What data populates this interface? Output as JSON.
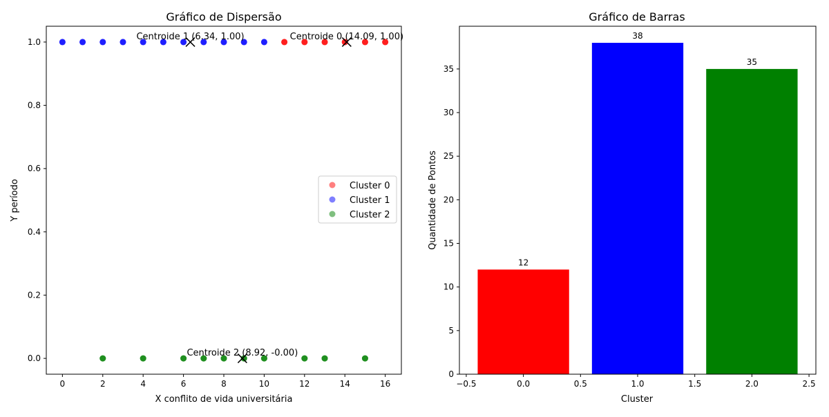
{
  "chart_data": [
    {
      "type": "scatter",
      "title": "Gráfico de Dispersão",
      "xlabel": "X conflito de vida universitária",
      "ylabel": "Y período",
      "xlim": [
        -0.8,
        16.8
      ],
      "ylim": [
        -0.05,
        1.05
      ],
      "xticks": [
        "0",
        "2",
        "4",
        "6",
        "8",
        "10",
        "12",
        "14",
        "16"
      ],
      "yticks": [
        "0.0",
        "0.2",
        "0.4",
        "0.6",
        "0.8",
        "1.0"
      ],
      "legend_position": "center-right",
      "series": [
        {
          "name": "Cluster 0",
          "color": "#ff0000",
          "points": [
            [
              11,
              1
            ],
            [
              12,
              1
            ],
            [
              13,
              1
            ],
            [
              14,
              1
            ],
            [
              15,
              1
            ],
            [
              16,
              1
            ]
          ]
        },
        {
          "name": "Cluster 1",
          "color": "#0000ff",
          "points": [
            [
              0,
              1
            ],
            [
              1,
              1
            ],
            [
              2,
              1
            ],
            [
              3,
              1
            ],
            [
              4,
              1
            ],
            [
              5,
              1
            ],
            [
              6,
              1
            ],
            [
              7,
              1
            ],
            [
              8,
              1
            ],
            [
              9,
              1
            ],
            [
              10,
              1
            ]
          ]
        },
        {
          "name": "Cluster 2",
          "color": "#008000",
          "points": [
            [
              2,
              0
            ],
            [
              4,
              0
            ],
            [
              6,
              0
            ],
            [
              7,
              0
            ],
            [
              8,
              0
            ],
            [
              9,
              0
            ],
            [
              10,
              0
            ],
            [
              12,
              0
            ],
            [
              13,
              0
            ],
            [
              15,
              0
            ]
          ]
        }
      ],
      "centroids": [
        {
          "x": 14.09,
          "y": 1.0,
          "label": "Centroide 0 (14.09, 1.00)"
        },
        {
          "x": 6.34,
          "y": 1.0,
          "label": "Centroide 1 (6.34, 1.00)"
        },
        {
          "x": 8.92,
          "y": 0.0,
          "label": "Centroide 2 (8.92, -0.00)"
        }
      ]
    },
    {
      "type": "bar",
      "title": "Gráfico de Barras",
      "xlabel": "Cluster",
      "ylabel": "Quantidade de Pontos",
      "xlim": [
        -0.5,
        2.5
      ],
      "ylim": [
        0,
        40
      ],
      "xticks": [
        "−0.5",
        "0.0",
        "0.5",
        "1.0",
        "1.5",
        "2.0",
        "2.5"
      ],
      "yticks": [
        "0",
        "5",
        "10",
        "15",
        "20",
        "25",
        "30",
        "35"
      ],
      "categories": [
        0,
        1,
        2
      ],
      "values": [
        12,
        38,
        35
      ],
      "value_labels": [
        "12",
        "38",
        "35"
      ],
      "colors": [
        "#ff0000",
        "#0000ff",
        "#008000"
      ]
    }
  ]
}
